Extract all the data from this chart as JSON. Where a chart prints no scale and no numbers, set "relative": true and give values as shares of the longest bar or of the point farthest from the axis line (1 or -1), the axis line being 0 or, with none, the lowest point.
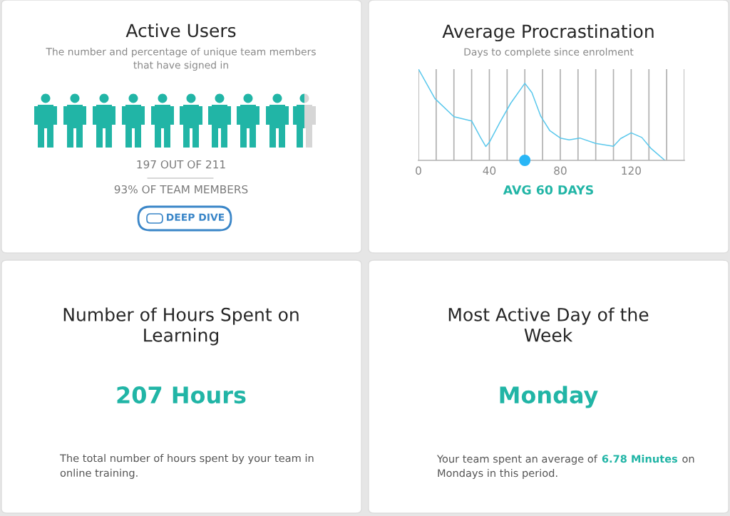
{
  "chart_data": [
    {
      "type": "other",
      "title": "Active Users",
      "subtitle": "The number and percentage of unique team members\nthat have signed in",
      "annotations": [
        "197 OUT OF 211",
        "93% OF TEAM MEMBERS",
        "DEEP DIVE"
      ]
    },
    {
      "type": "line",
      "title": "Average Procrastination",
      "subtitle": "Days to complete since enrolment",
      "relative": true,
      "xlim": [
        0,
        150
      ],
      "xticks": [
        0,
        {
          "value": 10,
          "label": null
        },
        {
          "value": 20,
          "label": null
        },
        {
          "value": 30,
          "label": null
        },
        40,
        {
          "value": 50,
          "label": null
        },
        {
          "value": 60,
          "label": null
        },
        {
          "value": 70,
          "label": null
        },
        80,
        {
          "value": 90,
          "label": null
        },
        {
          "value": 100,
          "label": null
        },
        {
          "value": 110,
          "label": null
        },
        120,
        {
          "value": 130,
          "label": null
        },
        {
          "value": 140,
          "label": null
        },
        {
          "value": 150,
          "label": null
        }
      ],
      "grid": "x",
      "annotations": [
        "AVG 60 DAYS"
      ],
      "series": [
        {
          "type": "line",
          "color": "#5bc8ec",
          "x": [
            0,
            9.3,
            20,
            30,
            35,
            38,
            40,
            46,
            52,
            60,
            64,
            69,
            74,
            80,
            85,
            91,
            100,
            110,
            114,
            120,
            126,
            131,
            139
          ],
          "values": [
            1.0,
            0.677,
            0.478,
            0.432,
            0.251,
            0.152,
            0.199,
            0.419,
            0.625,
            0.845,
            0.742,
            0.483,
            0.328,
            0.245,
            0.225,
            0.245,
            0.186,
            0.155,
            0.238,
            0.302,
            0.251,
            0.134,
            0
          ]
        },
        {
          "type": "scatter",
          "color": "#29b6f6",
          "x": [
            60
          ],
          "values": [
            0
          ]
        }
      ]
    },
    {
      "type": "other",
      "title": "Number of Hours Spent on\nLearning",
      "annotations": [
        "207 Hours",
        "The total number of hours spent by your team in\nonline training."
      ]
    },
    {
      "type": "other",
      "title": "Most Active Day of the\nWeek",
      "annotations": [
        "Monday",
        "Your team spent an average of",
        "6.78 Minutes",
        "on",
        "Mondays in this period."
      ]
    }
  ]
}
